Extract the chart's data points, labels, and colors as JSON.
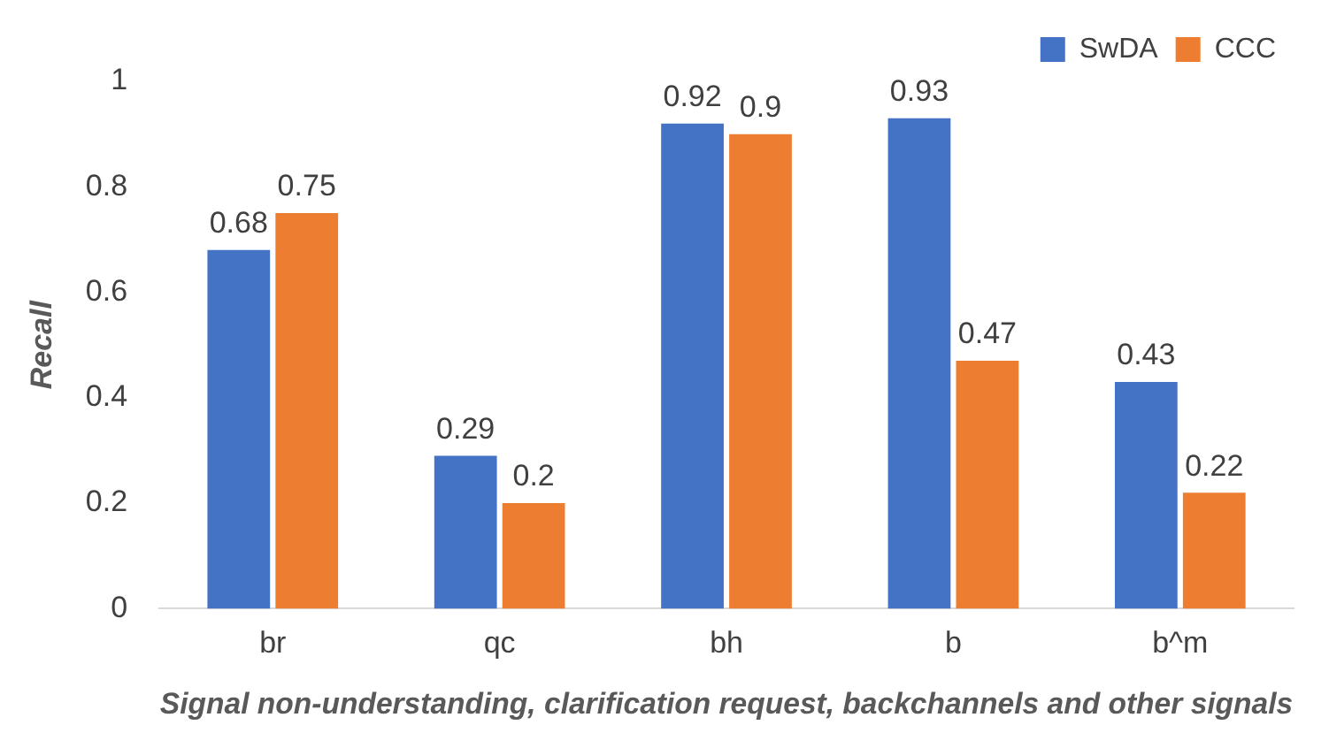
{
  "chart_data": {
    "type": "bar",
    "ylabel": "Recall",
    "xlabel": "Signal non-understanding, clarification request, backchannels and other signals",
    "categories": [
      "br",
      "qc",
      "bh",
      "b",
      "b^m"
    ],
    "series": [
      {
        "name": "SwDA",
        "color": "#4472c4",
        "values": [
          0.68,
          0.29,
          0.92,
          0.93,
          0.43
        ]
      },
      {
        "name": "CCC",
        "color": "#ed7d31",
        "values": [
          0.75,
          0.2,
          0.9,
          0.47,
          0.22
        ]
      }
    ],
    "ylim": [
      0,
      1
    ],
    "yticks": [
      0,
      0.2,
      0.4,
      0.6,
      0.8,
      1
    ],
    "grid": false,
    "legend": "top right",
    "data_labels": true
  }
}
